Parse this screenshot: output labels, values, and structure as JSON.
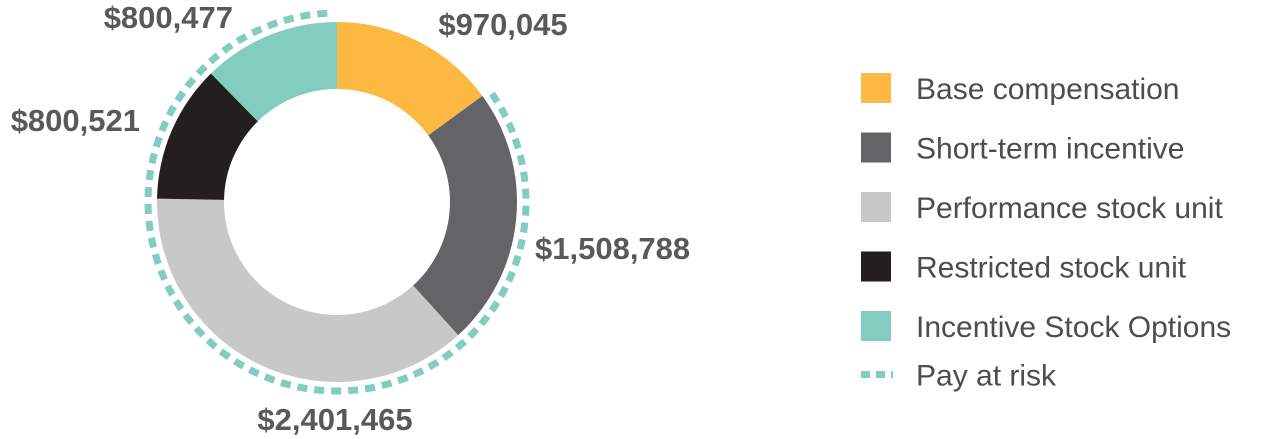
{
  "chart_data": {
    "type": "pie",
    "variant": "donut",
    "series": [
      {
        "name": "Base compensation",
        "value": 970045,
        "label": "$970,045",
        "color": "#fbb941"
      },
      {
        "name": "Short-term incentive",
        "value": 1508788,
        "label": "$1,508,788",
        "color": "#636466"
      },
      {
        "name": "Performance stock unit",
        "value": 2401465,
        "label": "$2,401,465",
        "color": "#c8c8c9"
      },
      {
        "name": "Restricted stock unit",
        "value": 800521,
        "label": "$800,521",
        "color": "#231f20"
      },
      {
        "name": "Incentive Stock Options",
        "value": 800477,
        "label": "$800,477",
        "color": "#82cdbf"
      }
    ],
    "pay_at_risk": {
      "name": "Pay at risk",
      "color": "#82cdbf",
      "style": "dashed"
    },
    "legend_position": "right"
  }
}
